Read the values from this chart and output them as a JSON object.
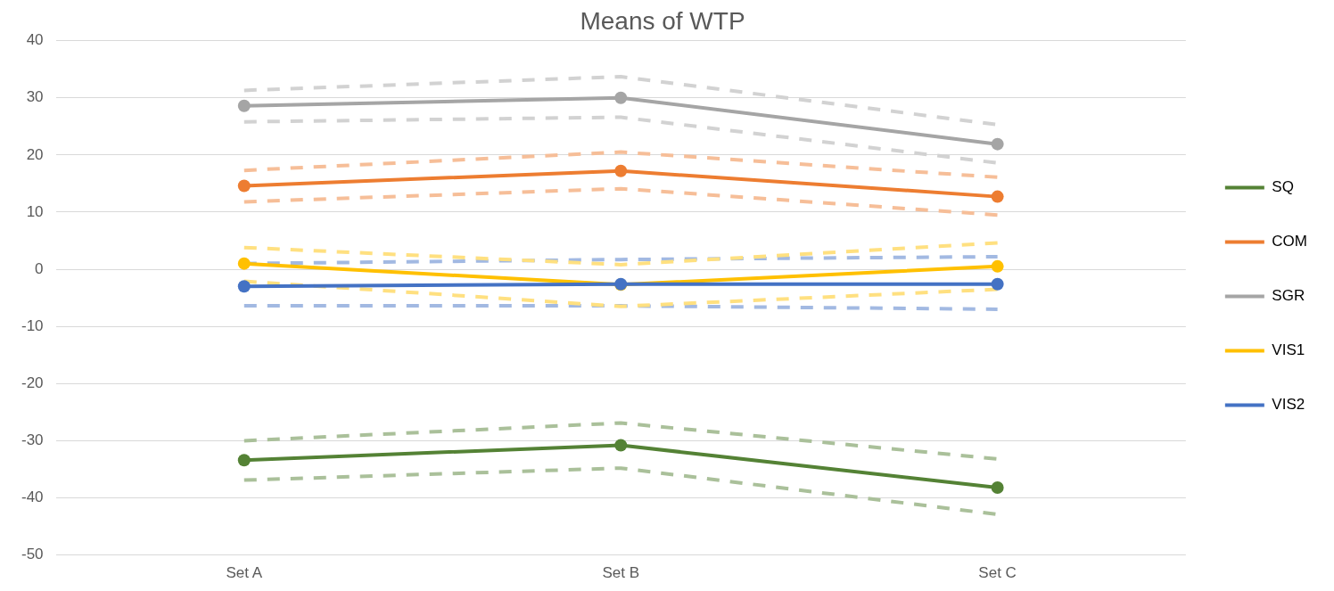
{
  "chart_data": {
    "type": "line",
    "title": "Means of WTP",
    "categories": [
      "Set A",
      "Set B",
      "Set C"
    ],
    "ylim": [
      -50,
      40
    ],
    "yticks": [
      -50,
      -40,
      -30,
      -20,
      -10,
      0,
      10,
      20,
      30,
      40
    ],
    "grid": "y",
    "legend": "right",
    "marker": "circle",
    "line_style": "solid",
    "series": [
      {
        "name": "SQ",
        "color": "#548235",
        "values": [
          -33.4,
          -30.8,
          -38.2
        ]
      },
      {
        "name": "COM",
        "color": "#ed7d31",
        "values": [
          14.6,
          17.2,
          12.7
        ]
      },
      {
        "name": "SGR",
        "color": "#a5a5a5",
        "values": [
          28.6,
          30.0,
          21.9
        ]
      },
      {
        "name": "VIS1",
        "color": "#ffc000",
        "values": [
          1.0,
          -2.7,
          0.5
        ]
      },
      {
        "name": "VIS2",
        "color": "#4472c4",
        "values": [
          -3.0,
          -2.6,
          -2.6
        ]
      },
      {
        "color": "#aac09a",
        "values": [
          -36.9,
          -34.8,
          -42.9
        ],
        "line_style": "dashed",
        "marker": "none"
      },
      {
        "color": "#aac09a",
        "values": [
          -30.0,
          -26.9,
          -33.2
        ],
        "line_style": "dashed",
        "marker": "none"
      },
      {
        "color": "#f6be98",
        "values": [
          11.8,
          14.1,
          9.5
        ],
        "line_style": "dashed",
        "marker": "none"
      },
      {
        "color": "#f6be98",
        "values": [
          17.3,
          20.5,
          16.1
        ],
        "line_style": "dashed",
        "marker": "none"
      },
      {
        "color": "#d2d2d2",
        "values": [
          25.8,
          26.6,
          18.6
        ],
        "line_style": "dashed",
        "marker": "none"
      },
      {
        "color": "#d2d2d2",
        "values": [
          31.3,
          33.7,
          25.3
        ],
        "line_style": "dashed",
        "marker": "none"
      },
      {
        "color": "#ffe080",
        "values": [
          -2.1,
          -6.5,
          -3.5
        ],
        "line_style": "dashed",
        "marker": "none"
      },
      {
        "color": "#ffe080",
        "values": [
          3.8,
          0.8,
          4.6
        ],
        "line_style": "dashed",
        "marker": "none"
      },
      {
        "color": "#a2b9e2",
        "values": [
          -6.4,
          -6.4,
          -7.0
        ],
        "line_style": "dashed",
        "marker": "none"
      },
      {
        "color": "#a2b9e2",
        "values": [
          1.0,
          1.7,
          2.2
        ],
        "line_style": "dashed",
        "marker": "none"
      }
    ]
  }
}
